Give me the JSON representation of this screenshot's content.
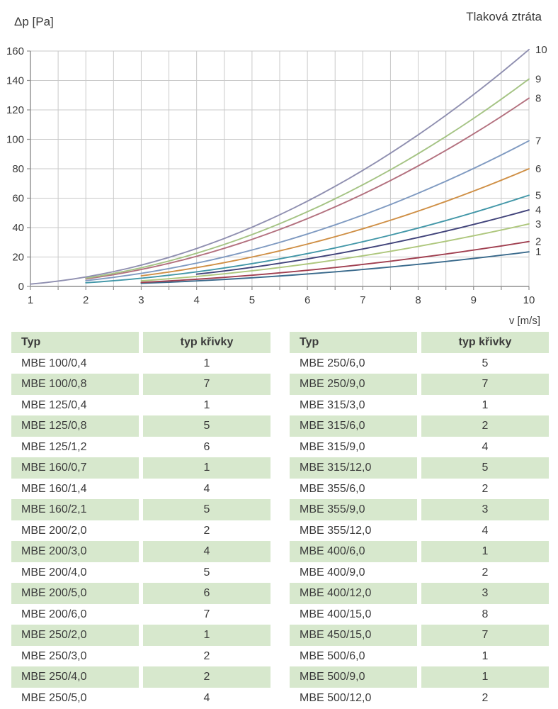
{
  "page": {
    "title": "Tlaková ztráta",
    "y_axis_title": "Δp [Pa]",
    "x_axis_title": "v [m/s]"
  },
  "chart_data": {
    "type": "line",
    "title": "Tlaková ztráta",
    "xlabel": "v [m/s]",
    "ylabel": "Δp [Pa]",
    "xlim": [
      1,
      10
    ],
    "ylim": [
      0,
      160
    ],
    "x_ticks": [
      1,
      2,
      3,
      4,
      5,
      6,
      7,
      8,
      9,
      10
    ],
    "y_ticks": [
      0,
      20,
      40,
      60,
      80,
      100,
      120,
      140,
      160
    ],
    "grid": true,
    "minor_x_grid_step": 0.5,
    "model": "dp = k * v^2 (Pa), drawn from v_start to v = 10 m/s",
    "series": [
      {
        "name": "1",
        "k": 0.235,
        "v_start": 3,
        "value_at_v10": 23.5,
        "color": "#3a6a8c"
      },
      {
        "name": "2",
        "k": 0.305,
        "v_start": 3,
        "value_at_v10": 30.5,
        "color": "#a03f50"
      },
      {
        "name": "3",
        "k": 0.425,
        "v_start": 3,
        "value_at_v10": 42.5,
        "color": "#aec77d"
      },
      {
        "name": "4",
        "k": 0.52,
        "v_start": 4,
        "value_at_v10": 52,
        "color": "#41437a"
      },
      {
        "name": "5",
        "k": 0.62,
        "v_start": 2,
        "value_at_v10": 62,
        "color": "#4297a8"
      },
      {
        "name": "6",
        "k": 0.8,
        "v_start": 3,
        "value_at_v10": 80,
        "color": "#cf8f45"
      },
      {
        "name": "7",
        "k": 0.99,
        "v_start": 2,
        "value_at_v10": 99,
        "color": "#7f9ac1"
      },
      {
        "name": "8",
        "k": 1.28,
        "v_start": 2,
        "value_at_v10": 128,
        "color": "#b3707e"
      },
      {
        "name": "9",
        "k": 1.41,
        "v_start": 2,
        "value_at_v10": 141,
        "color": "#a4c383"
      },
      {
        "name": "10",
        "k": 1.61,
        "v_start": 1,
        "value_at_v10": 161,
        "color": "#8f8fb0"
      }
    ]
  },
  "tables": [
    {
      "headers": [
        "Typ",
        "typ křivky"
      ],
      "rows": [
        [
          "MBE 100/0,4",
          "1"
        ],
        [
          "MBE 100/0,8",
          "7"
        ],
        [
          "MBE 125/0,4",
          "1"
        ],
        [
          "MBE 125/0,8",
          "5"
        ],
        [
          "MBE 125/1,2",
          "6"
        ],
        [
          "MBE 160/0,7",
          "1"
        ],
        [
          "MBE 160/1,4",
          "4"
        ],
        [
          "MBE 160/2,1",
          "5"
        ],
        [
          "MBE 200/2,0",
          "2"
        ],
        [
          "MBE 200/3,0",
          "4"
        ],
        [
          "MBE 200/4,0",
          "5"
        ],
        [
          "MBE 200/5,0",
          "6"
        ],
        [
          "MBE 200/6,0",
          "7"
        ],
        [
          "MBE 250/2,0",
          "1"
        ],
        [
          "MBE 250/3,0",
          "2"
        ],
        [
          "MBE 250/4,0",
          "2"
        ],
        [
          "MBE 250/5,0",
          "4"
        ]
      ]
    },
    {
      "headers": [
        "Typ",
        "typ křivky"
      ],
      "rows": [
        [
          "MBE 250/6,0",
          "5"
        ],
        [
          "MBE 250/9,0",
          "7"
        ],
        [
          "MBE 315/3,0",
          "1"
        ],
        [
          "MBE 315/6,0",
          "2"
        ],
        [
          "MBE 315/9,0",
          "4"
        ],
        [
          "MBE 315/12,0",
          "5"
        ],
        [
          "MBE 355/6,0",
          "2"
        ],
        [
          "MBE 355/9,0",
          "3"
        ],
        [
          "MBE 355/12,0",
          "4"
        ],
        [
          "MBE 400/6,0",
          "1"
        ],
        [
          "MBE 400/9,0",
          "2"
        ],
        [
          "MBE 400/12,0",
          "3"
        ],
        [
          "MBE 400/15,0",
          "8"
        ],
        [
          "MBE 450/15,0",
          "7"
        ],
        [
          "MBE 500/6,0",
          "1"
        ],
        [
          "MBE 500/9,0",
          "1"
        ],
        [
          "MBE 500/12,0",
          "2"
        ]
      ]
    }
  ],
  "colors": {
    "table_row_green": "#d7e8cd",
    "text": "#3b3b3b",
    "grid": "#c9c9c9",
    "axis": "#8f8f8f"
  }
}
